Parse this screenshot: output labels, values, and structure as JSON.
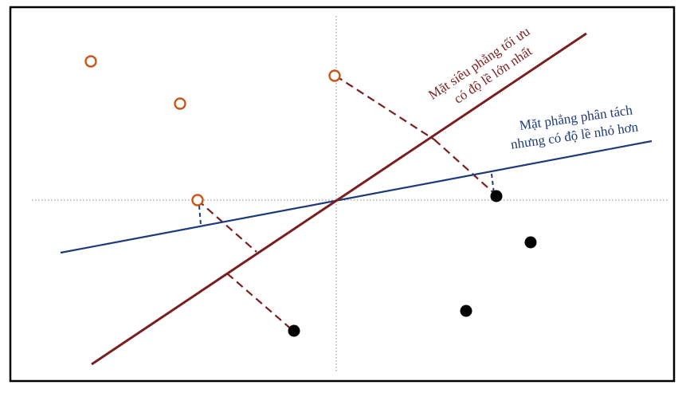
{
  "labels": {
    "optimal_line1": "Mặt siêu phẳng tối ưu",
    "optimal_line2": "có độ lề lớn nhất",
    "smaller_line1": "Mặt phẳng phân tách",
    "smaller_line2": "nhưng có độ lề nhỏ hơn"
  },
  "colors": {
    "optimal_hyperplane": "#7a1f1f",
    "smaller_margin_plane": "#1f3a7a",
    "hollow_point_stroke": "#c8581a",
    "solid_point_fill": "#000000",
    "axis": "#9a9a9a",
    "frame": "#000000"
  },
  "points": {
    "class_hollow_count": 4,
    "class_solid_count": 4
  }
}
